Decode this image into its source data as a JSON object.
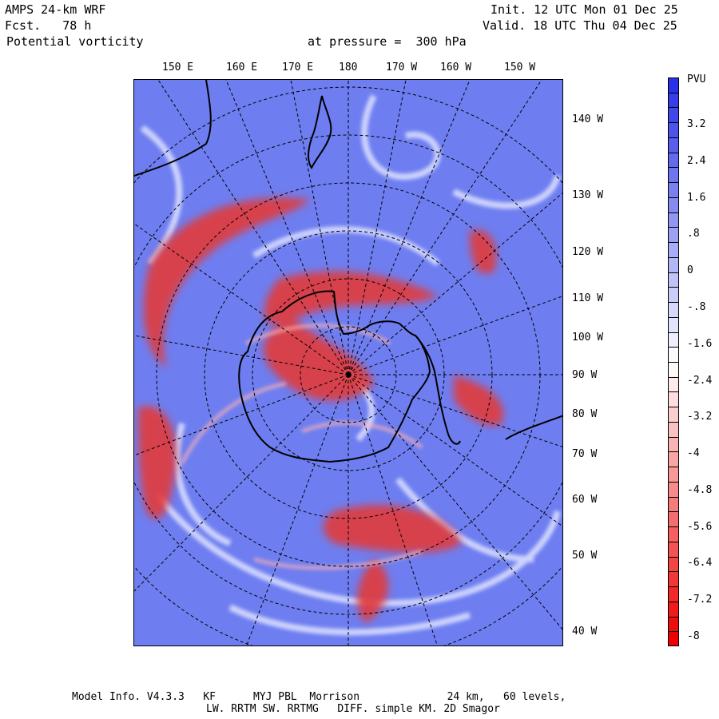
{
  "header": {
    "model": "AMPS 24-km WRF",
    "fcst": "Fcst.   78 h",
    "field": "Potential vorticity",
    "pressure": "at pressure =  300 hPa",
    "init": "Init. 12 UTC Mon 01 Dec 25",
    "valid": "Valid. 18 UTC Thu 04 Dec 25"
  },
  "map": {
    "top_labels": [
      "150 E",
      "160 E",
      "170 E",
      "180",
      "170 W",
      "160 W",
      "150 W"
    ],
    "right_labels": [
      "140 W",
      "130 W",
      "120 W",
      "110 W",
      "100 W",
      "90 W",
      "80 W",
      "70 W",
      "60 W",
      "50 W",
      "40 W"
    ],
    "colors": {
      "background": "#6e7ef0",
      "positive": "#e23a3a",
      "light": "#f3f3ff"
    }
  },
  "colorbar": {
    "units": "PVU",
    "labels": [
      "3.2",
      "2.4",
      "1.6",
      ".8",
      "0",
      "-.8",
      "-1.6",
      "-2.4",
      "-3.2",
      "-4",
      "-4.8",
      "-5.6",
      "-6.4",
      "-7.2",
      "-8"
    ],
    "levels": 38,
    "colors": {
      "top": "#2a32e8",
      "mid": "#ffffff",
      "bottom": "#ee0000"
    }
  },
  "footer": {
    "line1": "Model Info. V4.3.3   KF      MYJ PBL  Morrison              24 km,   60 levels,",
    "line2": "LW. RRTM SW. RRTMG   DIFF. simple KM. 2D Smagor"
  }
}
